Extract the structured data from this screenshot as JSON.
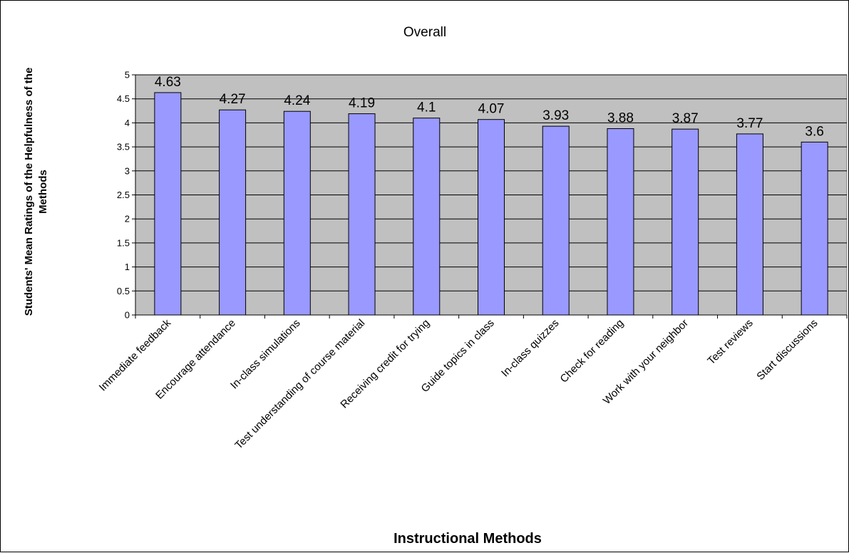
{
  "chart_data": {
    "type": "bar",
    "title": "Overall",
    "xlabel": "Instructional Methods",
    "ylabel_lines": [
      "Students' Mean Ratings of the Helpfulness of the",
      "Methods"
    ],
    "categories": [
      "Immediate feedback",
      "Encourage attendance",
      "In-class simulations",
      "Test understanding of course material",
      "Receiving credit for trying",
      "Guide topics in class",
      "In-class quizzes",
      "Check for reading",
      "Work with your neighbor",
      "Test reviews",
      "Start discussions"
    ],
    "values": [
      4.63,
      4.27,
      4.24,
      4.19,
      4.1,
      4.07,
      3.93,
      3.88,
      3.87,
      3.77,
      3.6
    ],
    "data_labels": [
      "4.63",
      "4.27",
      "4.24",
      "4.19",
      "4.1",
      "4.07",
      "3.93",
      "3.88",
      "3.87",
      "3.77",
      "3.6"
    ],
    "ylim": [
      0,
      5
    ],
    "yticks": [
      "0",
      "0.5",
      "1",
      "1.5",
      "2",
      "2.5",
      "3",
      "3.5",
      "4",
      "4.5",
      "5"
    ],
    "grid": true,
    "legend": "none",
    "colors": {
      "bar": "#9999FF",
      "plot_background": "#C0C0C0",
      "gridline": "#000000"
    }
  }
}
